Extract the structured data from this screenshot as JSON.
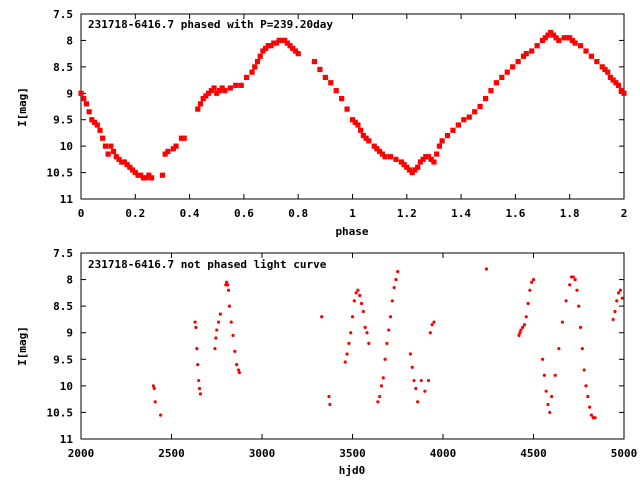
{
  "chart_data": [
    {
      "type": "scatter",
      "title": "231718-6416.7 phased with P=239.20day",
      "xlabel": "phase",
      "ylabel": "I[mag]",
      "xlim": [
        0,
        2
      ],
      "ylim": [
        7.5,
        11
      ],
      "y_inverted": true,
      "x_ticks": [
        "0",
        "0.2",
        "0.4",
        "0.6",
        "0.8",
        "1",
        "1.2",
        "1.4",
        "1.6",
        "1.8",
        "2"
      ],
      "y_ticks": [
        "7.5",
        "8",
        "8.5",
        "9",
        "9.5",
        "10",
        "10.5",
        "11"
      ],
      "marker_color": "#ff0000",
      "series": [
        {
          "x": [
            0.0,
            0.01,
            0.02,
            0.03,
            0.04,
            0.05,
            0.06,
            0.07,
            0.08,
            0.09,
            0.1,
            0.11,
            0.12,
            0.13,
            0.14,
            0.15,
            0.16,
            0.17,
            0.18,
            0.19,
            0.2,
            0.21,
            0.22,
            0.23,
            0.24,
            0.25,
            0.26,
            0.3,
            0.31,
            0.32,
            0.34,
            0.35,
            0.37,
            0.38,
            0.43,
            0.44,
            0.45,
            0.46,
            0.47,
            0.48,
            0.49,
            0.5,
            0.51,
            0.52,
            0.53,
            0.55,
            0.57,
            0.59,
            0.61,
            0.63,
            0.64,
            0.65,
            0.66,
            0.67,
            0.68,
            0.69,
            0.7,
            0.71,
            0.72,
            0.73,
            0.74,
            0.75,
            0.76,
            0.77,
            0.78,
            0.79,
            0.8,
            0.86,
            0.88,
            0.9,
            0.92,
            0.94,
            0.96,
            0.98,
            1.0,
            1.01,
            1.02,
            1.03,
            1.04,
            1.05,
            1.06,
            1.08,
            1.09,
            1.1,
            1.11,
            1.12,
            1.14,
            1.16,
            1.18,
            1.19,
            1.2,
            1.21,
            1.22,
            1.23,
            1.24,
            1.25,
            1.26,
            1.27,
            1.28,
            1.29,
            1.3,
            1.31,
            1.32,
            1.33,
            1.35,
            1.37,
            1.39,
            1.41,
            1.43,
            1.45,
            1.47,
            1.49,
            1.51,
            1.53,
            1.55,
            1.57,
            1.59,
            1.61,
            1.63,
            1.64,
            1.66,
            1.68,
            1.7,
            1.71,
            1.72,
            1.73,
            1.74,
            1.75,
            1.76,
            1.78,
            1.79,
            1.8,
            1.81,
            1.82,
            1.84,
            1.86,
            1.88,
            1.9,
            1.92,
            1.93,
            1.94,
            1.95,
            1.96,
            1.97,
            1.98,
            1.99,
            2.0
          ],
          "y": [
            9.0,
            9.1,
            9.2,
            9.35,
            9.5,
            9.55,
            9.6,
            9.7,
            9.85,
            10.0,
            10.15,
            10.0,
            10.1,
            10.2,
            10.25,
            10.3,
            10.3,
            10.35,
            10.4,
            10.45,
            10.5,
            10.55,
            10.55,
            10.6,
            10.6,
            10.55,
            10.6,
            10.55,
            10.15,
            10.1,
            10.05,
            10.0,
            9.85,
            9.85,
            9.3,
            9.2,
            9.1,
            9.05,
            9.0,
            8.95,
            8.9,
            9.0,
            8.95,
            8.9,
            8.95,
            8.9,
            8.85,
            8.85,
            8.7,
            8.6,
            8.5,
            8.4,
            8.3,
            8.2,
            8.15,
            8.1,
            8.1,
            8.05,
            8.05,
            8.0,
            8.0,
            8.0,
            8.05,
            8.1,
            8.15,
            8.2,
            8.25,
            8.4,
            8.55,
            8.7,
            8.8,
            8.95,
            9.1,
            9.3,
            9.5,
            9.55,
            9.6,
            9.7,
            9.8,
            9.85,
            9.9,
            10.0,
            10.05,
            10.1,
            10.15,
            10.2,
            10.2,
            10.25,
            10.3,
            10.35,
            10.4,
            10.45,
            10.5,
            10.45,
            10.4,
            10.3,
            10.25,
            10.2,
            10.2,
            10.25,
            10.3,
            10.15,
            10.0,
            9.9,
            9.8,
            9.7,
            9.6,
            9.5,
            9.45,
            9.35,
            9.25,
            9.1,
            8.95,
            8.8,
            8.7,
            8.6,
            8.5,
            8.4,
            8.3,
            8.25,
            8.2,
            8.1,
            8.0,
            7.95,
            7.9,
            7.85,
            7.9,
            7.95,
            8.0,
            7.95,
            7.95,
            7.95,
            8.0,
            8.05,
            8.1,
            8.2,
            8.3,
            8.4,
            8.5,
            8.55,
            8.6,
            8.7,
            8.75,
            8.8,
            8.85,
            8.95,
            9.0
          ]
        }
      ]
    },
    {
      "type": "scatter",
      "title": "231718-6416.7 not phased light curve",
      "xlabel": "hjd0",
      "ylabel": "I[mag]",
      "xlim": [
        2000,
        5000
      ],
      "ylim": [
        7.5,
        11
      ],
      "y_inverted": true,
      "x_ticks": [
        "2000",
        "2500",
        "3000",
        "3500",
        "4000",
        "4500",
        "5000"
      ],
      "y_ticks": [
        "7.5",
        "8",
        "8.5",
        "9",
        "9.5",
        "10",
        "10.5",
        "11"
      ],
      "marker_color": "#ff0000",
      "series": [
        {
          "x": [
            2400,
            2405,
            2410,
            2440,
            2630,
            2635,
            2640,
            2645,
            2650,
            2655,
            2660,
            2740,
            2745,
            2750,
            2760,
            2770,
            2800,
            2805,
            2810,
            2815,
            2820,
            2830,
            2840,
            2850,
            2860,
            2870,
            2875,
            3330,
            3370,
            3375,
            3460,
            3470,
            3480,
            3490,
            3500,
            3510,
            3520,
            3530,
            3540,
            3550,
            3560,
            3570,
            3580,
            3590,
            3640,
            3650,
            3660,
            3670,
            3680,
            3690,
            3700,
            3710,
            3720,
            3730,
            3740,
            3750,
            3820,
            3830,
            3840,
            3850,
            3860,
            3880,
            3900,
            3920,
            3930,
            3940,
            3950,
            4240,
            4420,
            4425,
            4430,
            4440,
            4450,
            4460,
            4470,
            4480,
            4490,
            4500,
            4550,
            4560,
            4570,
            4580,
            4590,
            4600,
            4620,
            4640,
            4660,
            4680,
            4700,
            4710,
            4720,
            4730,
            4740,
            4750,
            4760,
            4770,
            4780,
            4790,
            4800,
            4810,
            4820,
            4830,
            4840,
            4940,
            4950,
            4960,
            4970,
            4980,
            4990
          ],
          "y": [
            10.0,
            10.05,
            10.3,
            10.55,
            8.8,
            8.9,
            9.3,
            9.6,
            9.9,
            10.05,
            10.15,
            9.3,
            9.1,
            8.95,
            8.8,
            8.65,
            8.1,
            8.05,
            8.1,
            8.2,
            8.5,
            8.8,
            9.05,
            9.35,
            9.6,
            9.7,
            9.75,
            8.7,
            10.2,
            10.35,
            9.55,
            9.4,
            9.2,
            9.0,
            8.7,
            8.4,
            8.25,
            8.2,
            8.3,
            8.45,
            8.6,
            8.9,
            9.0,
            9.2,
            10.3,
            10.2,
            10.0,
            9.85,
            9.5,
            9.2,
            8.95,
            8.7,
            8.4,
            8.15,
            8.0,
            7.85,
            9.4,
            9.65,
            9.9,
            10.05,
            10.3,
            9.9,
            10.1,
            9.9,
            9.0,
            8.85,
            8.8,
            7.8,
            9.05,
            9.0,
            8.95,
            8.9,
            8.85,
            8.7,
            8.45,
            8.2,
            8.05,
            8.0,
            9.5,
            9.8,
            10.1,
            10.35,
            10.5,
            10.2,
            9.8,
            9.3,
            8.8,
            8.4,
            8.1,
            7.95,
            7.95,
            8.0,
            8.2,
            8.5,
            8.9,
            9.3,
            9.7,
            10.0,
            10.2,
            10.4,
            10.55,
            10.6,
            10.6,
            8.75,
            8.6,
            8.4,
            8.25,
            8.2,
            8.35
          ]
        }
      ]
    }
  ]
}
